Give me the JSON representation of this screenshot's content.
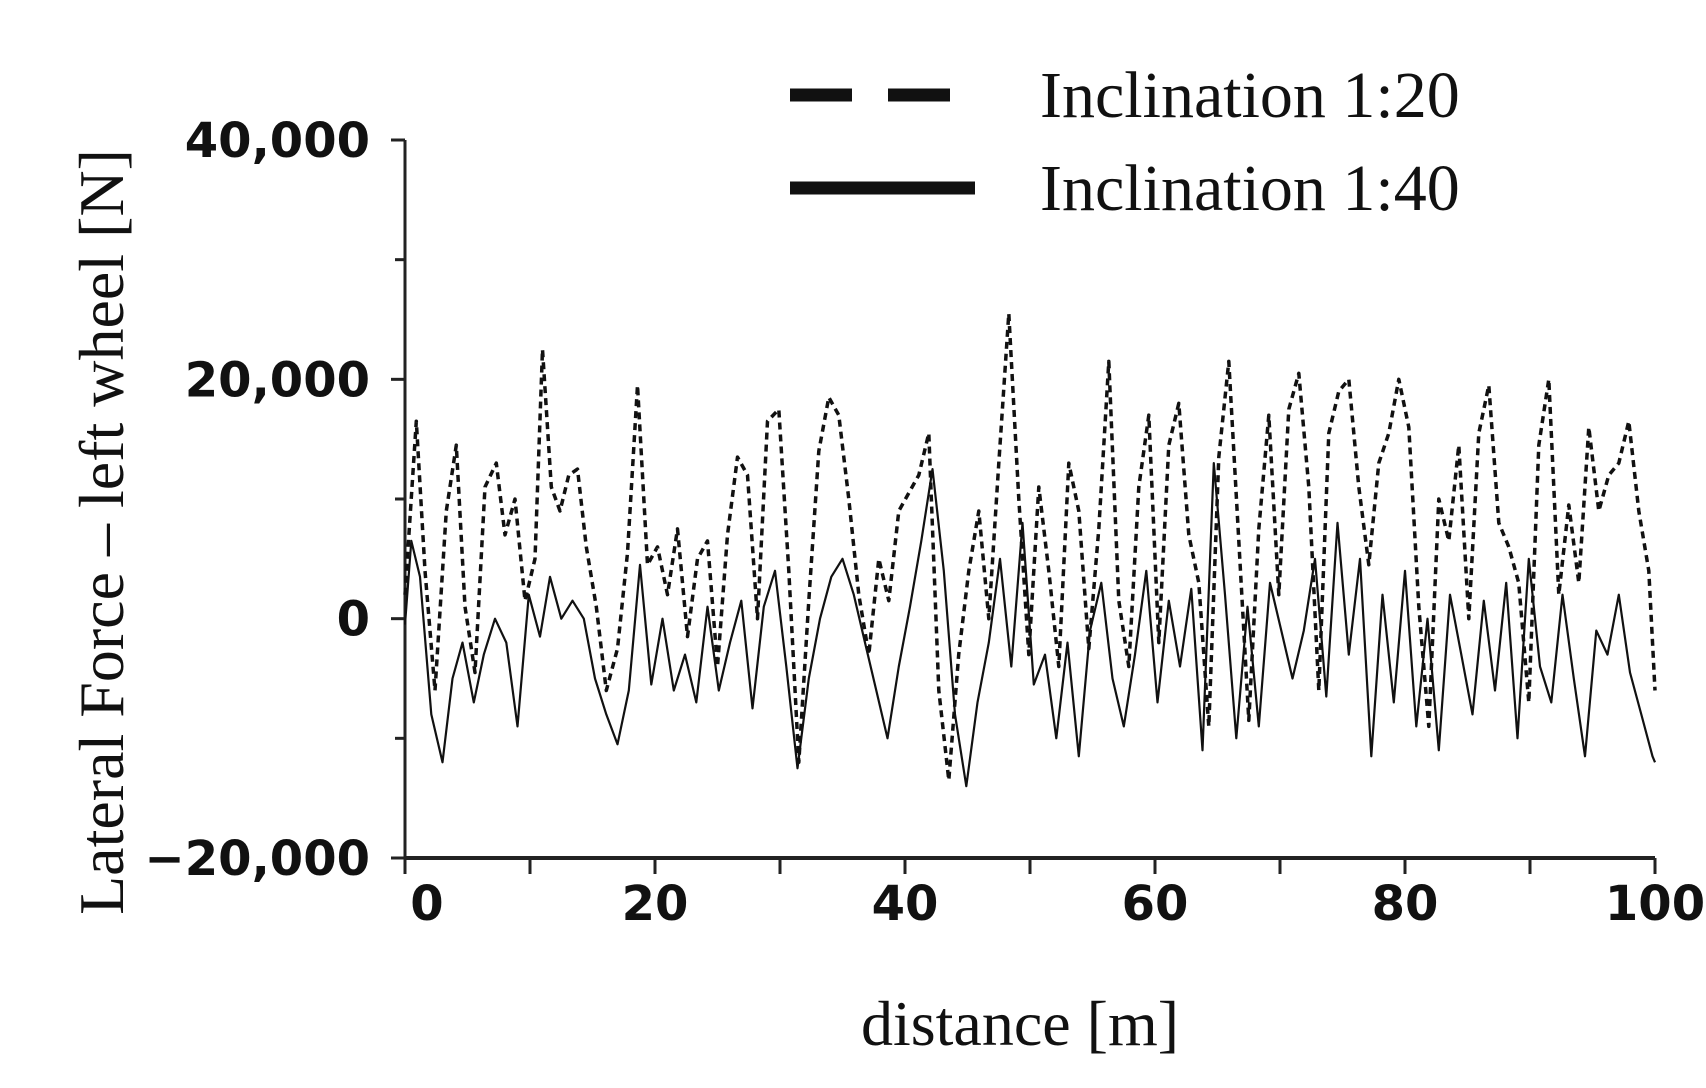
{
  "chart_data": {
    "type": "line",
    "title": "",
    "xlabel": "distance  [m]",
    "ylabel": "Lateral Force – left wheel [N]",
    "xlim": [
      0,
      100
    ],
    "ylim": [
      -20000,
      40000
    ],
    "x_ticks": [
      0,
      20,
      40,
      60,
      80,
      100
    ],
    "y_ticks": [
      -20000,
      0,
      20000,
      40000
    ],
    "x_tick_labels": [
      "0",
      "20",
      "40",
      "60",
      "80",
      "100"
    ],
    "y_tick_labels": [
      "−20,000",
      "0",
      "20,000",
      "40,000"
    ],
    "legend_position": "top-right",
    "series": [
      {
        "name": "Inclination 1:20",
        "style": "dashed",
        "color": "#111111",
        "x": [
          0,
          0.9,
          1.6,
          2.4,
          3.3,
          4.1,
          4.8,
          5.6,
          6.4,
          7.3,
          8.0,
          8.8,
          9.6,
          10.4,
          11.0,
          11.7,
          12.4,
          13.1,
          13.8,
          14.5,
          15.3,
          16.1,
          17.0,
          17.8,
          18.6,
          19.4,
          20.2,
          21.0,
          21.8,
          22.6,
          23.4,
          24.2,
          25.0,
          25.8,
          26.6,
          27.4,
          28.2,
          29.0,
          29.9,
          30.7,
          31.5,
          32.3,
          33.1,
          33.9,
          34.7,
          35.5,
          36.3,
          37.1,
          37.9,
          38.7,
          39.5,
          40.3,
          41.1,
          41.9,
          42.7,
          43.5,
          44.3,
          45.1,
          45.9,
          46.7,
          47.5,
          48.3,
          49.1,
          49.9,
          50.7,
          51.5,
          52.3,
          53.1,
          53.9,
          54.7,
          55.5,
          56.3,
          57.1,
          57.9,
          58.7,
          59.5,
          60.3,
          61.1,
          61.9,
          62.7,
          63.5,
          64.3,
          65.1,
          65.9,
          66.7,
          67.5,
          68.3,
          69.1,
          69.9,
          70.7,
          71.5,
          72.3,
          73.1,
          73.9,
          74.7,
          75.5,
          76.3,
          77.1,
          77.9,
          78.7,
          79.5,
          80.3,
          81.1,
          81.9,
          82.7,
          83.5,
          84.3,
          85.1,
          85.9,
          86.7,
          87.5,
          88.3,
          89.1,
          89.9,
          90.7,
          91.5,
          92.3,
          93.1,
          93.9,
          94.7,
          95.5,
          96.3,
          97.1,
          97.9,
          98.7,
          99.5,
          100
        ],
        "y": [
          2000,
          16500,
          4000,
          -6000,
          9000,
          14500,
          1000,
          -4500,
          11000,
          13000,
          7000,
          10000,
          1500,
          5000,
          22500,
          11000,
          9000,
          12000,
          12500,
          6000,
          1000,
          -6000,
          -2500,
          5500,
          19500,
          4500,
          6000,
          2000,
          7500,
          -1500,
          5000,
          6500,
          -4000,
          7000,
          13500,
          12000,
          0,
          16500,
          17500,
          4000,
          -12000,
          1500,
          14000,
          18500,
          17000,
          10000,
          2000,
          -3000,
          5000,
          1500,
          9000,
          10500,
          12000,
          15500,
          -6000,
          -13500,
          -3000,
          4000,
          9000,
          0,
          13000,
          25500,
          10000,
          -3000,
          11000,
          4000,
          -4000,
          13000,
          9000,
          -2500,
          7500,
          21500,
          1500,
          -4000,
          11000,
          17000,
          -2000,
          14500,
          18000,
          7000,
          3000,
          -9000,
          13500,
          21500,
          6500,
          -8500,
          7500,
          17000,
          2000,
          17500,
          20500,
          11000,
          -6000,
          15500,
          19000,
          20000,
          11000,
          4500,
          13000,
          15500,
          20000,
          16000,
          1000,
          -9000,
          10000,
          6500,
          14500,
          0,
          15500,
          19500,
          8000,
          6000,
          3000,
          -7000,
          14500,
          20000,
          2000,
          9500,
          3000,
          16000,
          9000,
          12000,
          13000,
          16500,
          9000,
          4000,
          -6000
        ]
      },
      {
        "name": "Inclination 1:40",
        "style": "solid",
        "color": "#111111",
        "x": [
          0,
          0.5,
          1.2,
          2.1,
          3.0,
          3.8,
          4.6,
          5.5,
          6.3,
          7.2,
          8.1,
          9.0,
          9.9,
          10.8,
          11.6,
          12.5,
          13.4,
          14.3,
          15.2,
          16.1,
          17.0,
          17.9,
          18.8,
          19.7,
          20.6,
          21.5,
          22.4,
          23.3,
          24.2,
          25.1,
          26.0,
          26.9,
          27.8,
          28.7,
          29.6,
          30.5,
          31.4,
          32.3,
          33.2,
          34.1,
          35.0,
          35.9,
          36.8,
          37.7,
          38.6,
          39.5,
          40.4,
          41.3,
          42.2,
          43.1,
          44.0,
          44.9,
          45.8,
          46.7,
          47.6,
          48.5,
          49.4,
          50.3,
          51.2,
          52.1,
          53.0,
          53.9,
          54.8,
          55.7,
          56.6,
          57.5,
          58.4,
          59.3,
          60.2,
          61.1,
          62.0,
          62.9,
          63.8,
          64.7,
          65.6,
          66.5,
          67.4,
          68.3,
          69.2,
          70.1,
          71.0,
          71.9,
          72.8,
          73.7,
          74.6,
          75.5,
          76.4,
          77.3,
          78.2,
          79.1,
          80.0,
          80.9,
          81.8,
          82.7,
          83.6,
          84.5,
          85.4,
          86.3,
          87.2,
          88.1,
          89.0,
          89.9,
          90.8,
          91.7,
          92.6,
          93.5,
          94.4,
          95.3,
          96.2,
          97.1,
          98.0,
          98.9,
          99.8,
          100
        ],
        "y": [
          -500,
          6500,
          3500,
          -8000,
          -12000,
          -5000,
          -2000,
          -7000,
          -3000,
          0,
          -2000,
          -9000,
          2000,
          -1500,
          3500,
          0,
          1500,
          0,
          -5000,
          -8000,
          -10500,
          -6000,
          4500,
          -5500,
          0,
          -6000,
          -3000,
          -7000,
          1000,
          -6000,
          -2000,
          1500,
          -7500,
          1000,
          4000,
          -4000,
          -12500,
          -5000,
          0,
          3500,
          5000,
          2000,
          -2000,
          -6000,
          -10000,
          -4000,
          1000,
          6500,
          12500,
          4000,
          -8000,
          -14000,
          -7000,
          -2000,
          5000,
          -4000,
          8000,
          -5500,
          -3000,
          -10000,
          -2000,
          -11500,
          -1000,
          3000,
          -5000,
          -9000,
          -3000,
          4000,
          -7000,
          1500,
          -4000,
          2500,
          -11000,
          13000,
          2000,
          -10000,
          1000,
          -9000,
          3000,
          -1000,
          -5000,
          -1000,
          5000,
          -6500,
          8000,
          -3000,
          5000,
          -11500,
          2000,
          -7000,
          4000,
          -9000,
          0,
          -11000,
          2000,
          -3000,
          -8000,
          1500,
          -6000,
          3000,
          -10000,
          5000,
          -4000,
          -7000,
          2000,
          -5000,
          -11500,
          -1000,
          -3000,
          2000,
          -4500,
          -8000,
          -11500,
          -12000
        ]
      }
    ]
  }
}
